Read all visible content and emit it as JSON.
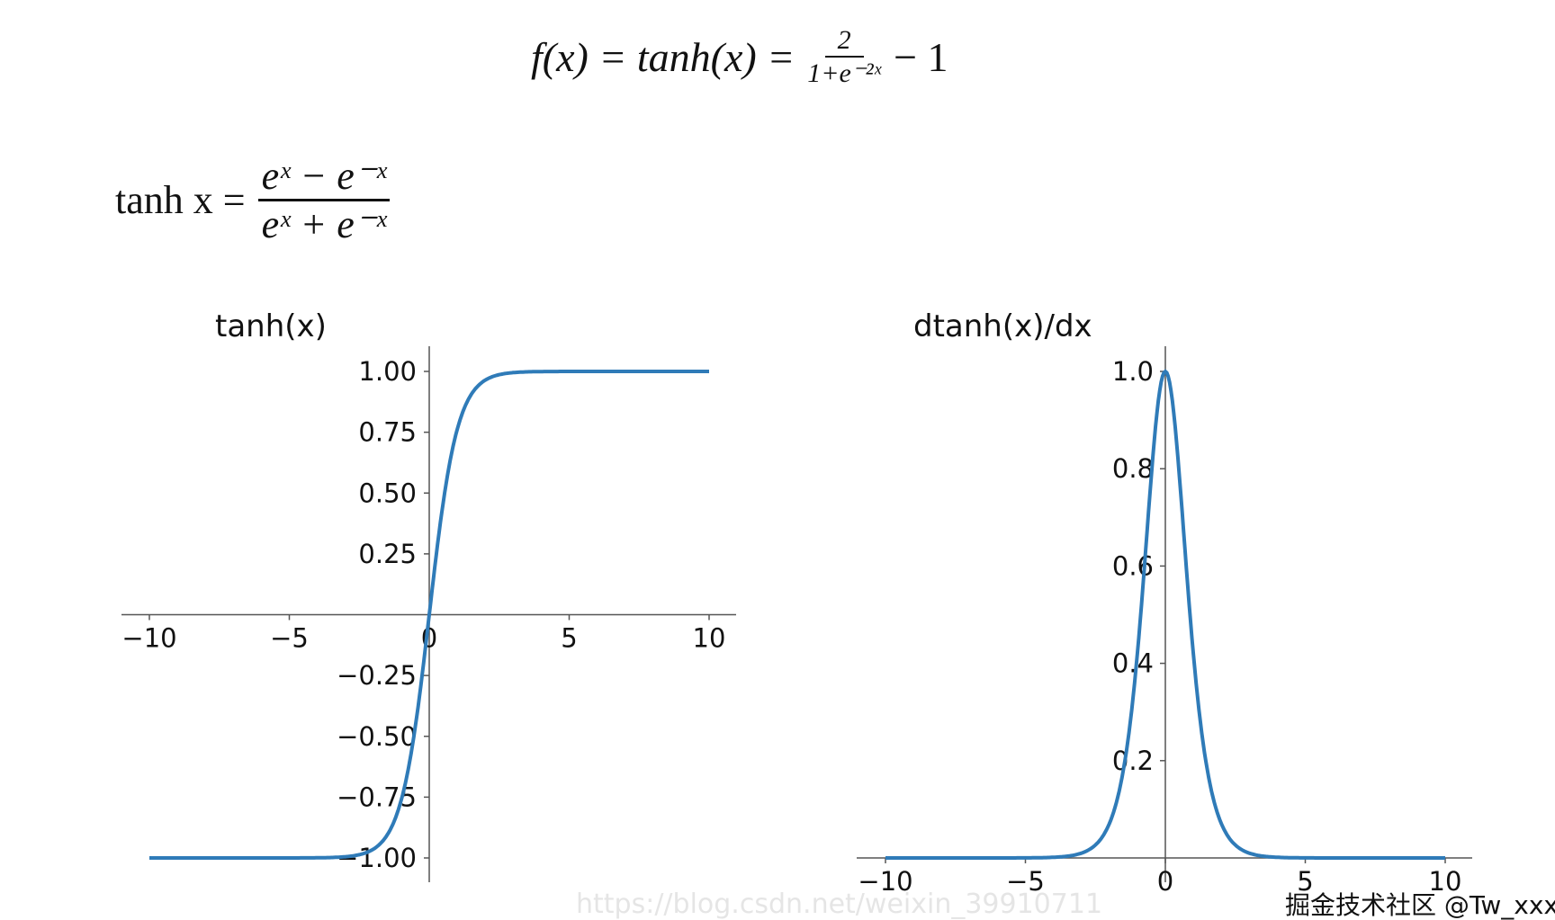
{
  "formulas": {
    "top_lhs": "f(x)  =  tanh(x)  =",
    "top_num": "2",
    "top_den": "1+e⁻²ˣ",
    "top_rhs": "− 1",
    "second_lhs": "tanh x =",
    "second_num": "eˣ − e⁻ˣ",
    "second_den": "eˣ + e⁻ˣ"
  },
  "watermarks": {
    "csdn": "https://blog.csdn.net/weixin_39910711",
    "juejin": "掘金技术社区 @Tw_xxxx"
  },
  "chart_data": [
    {
      "type": "line",
      "title": "tanh(x)",
      "function": "tanh",
      "x_range": [
        -10,
        10
      ],
      "xlim": [
        -11,
        11
      ],
      "ylim": [
        -1.05,
        1.05
      ],
      "xticks": [
        -10,
        -5,
        0,
        5,
        10
      ],
      "xtick_labels": [
        "−10",
        "−5",
        "0",
        "5",
        "10"
      ],
      "yticks": [
        -1,
        -0.75,
        -0.5,
        -0.25,
        0.25,
        0.5,
        0.75,
        1
      ],
      "ytick_labels": [
        "−1.00",
        "−0.75",
        "−0.50",
        "−0.25",
        "0.25",
        "0.50",
        "0.75",
        "1.00"
      ],
      "spines": "centered",
      "grid": false,
      "color": "#2f7bb8"
    },
    {
      "type": "line",
      "title": "dtanh(x)/dx",
      "function": "1 - tanh(x)^2",
      "x_range": [
        -10,
        10
      ],
      "xlim": [
        -11,
        11
      ],
      "ylim": [
        0,
        1
      ],
      "xticks": [
        -10,
        -5,
        0,
        5,
        10
      ],
      "xtick_labels": [
        "−10",
        "−5",
        "0",
        "5",
        "10"
      ],
      "yticks": [
        0.2,
        0.4,
        0.6,
        0.8,
        1.0
      ],
      "ytick_labels": [
        "0.2",
        "0.4",
        "0.6",
        "0.8",
        "1.0"
      ],
      "spines": "centered",
      "grid": false,
      "color": "#2f7bb8"
    }
  ]
}
